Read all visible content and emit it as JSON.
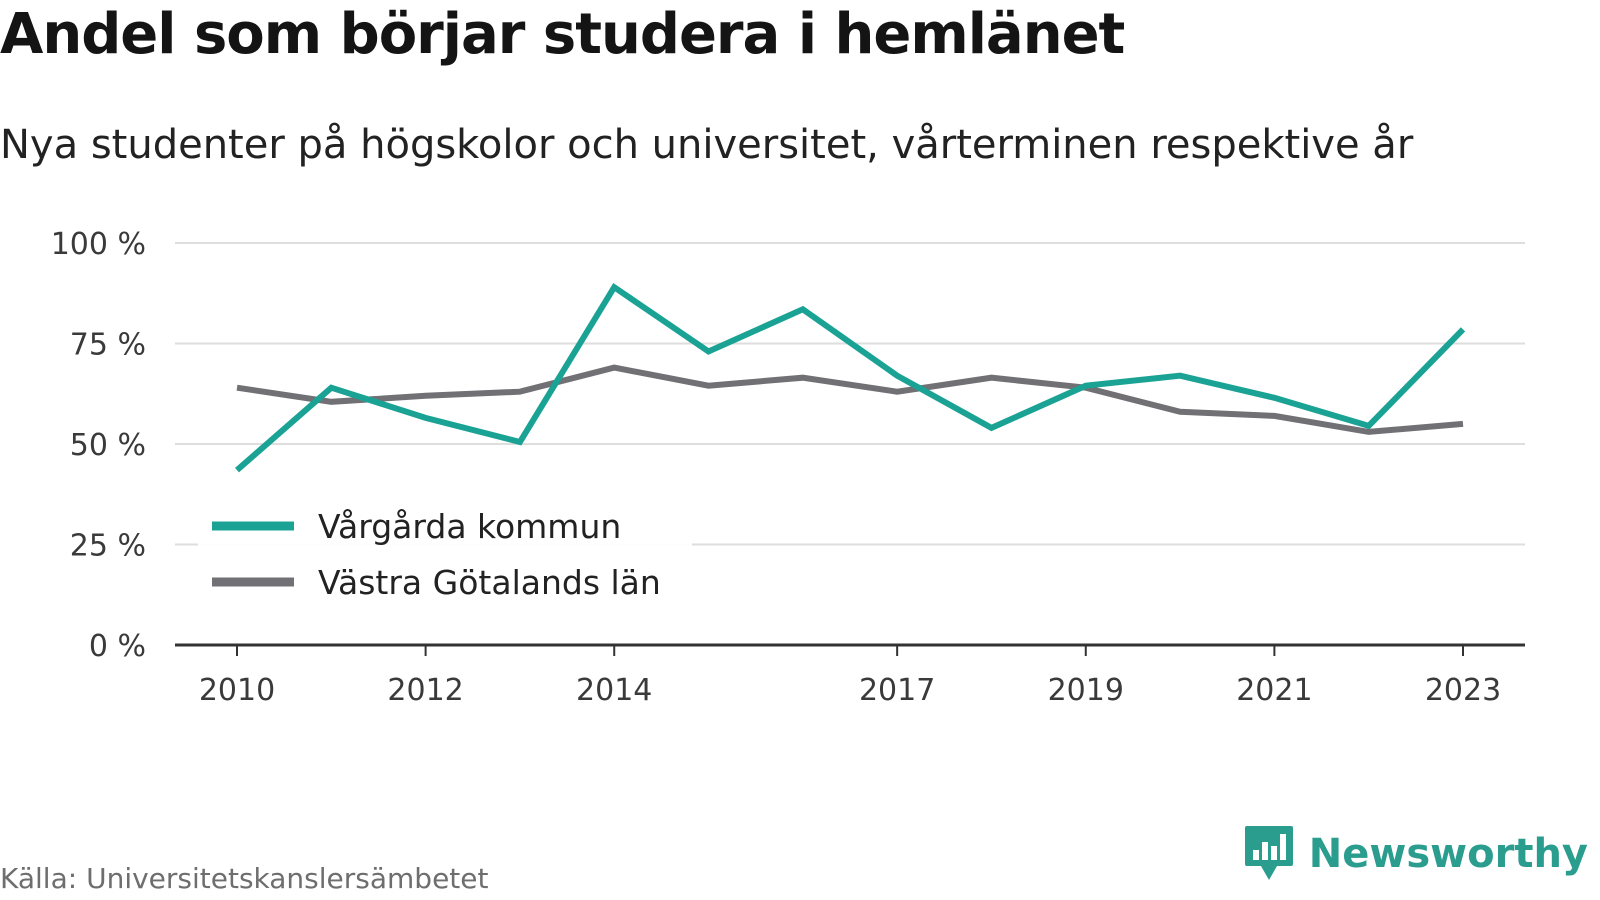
{
  "header": {
    "title": "Andel som börjar studera i hemlänet",
    "subtitle": "Nya studenter på högskolor och universitet, vårterminen respektive år"
  },
  "footer": {
    "source": "Källa: Universitetskanslersämbetet",
    "brand": "Newsworthy"
  },
  "colors": {
    "primary": "#1aa394",
    "secondary": "#707075",
    "grid": "#dedede",
    "axis": "#333333",
    "brand": "#2a9d8f"
  },
  "icons": {
    "brand_logo": "bar-chart-pin-icon"
  },
  "chart_data": {
    "type": "line",
    "title": "Andel som börjar studera i hemlänet",
    "subtitle": "Nya studenter på högskolor och universitet, vårterminen respektive år",
    "xlabel": "",
    "ylabel": "",
    "x": [
      2010,
      2011,
      2012,
      2013,
      2014,
      2015,
      2016,
      2017,
      2018,
      2019,
      2020,
      2021,
      2022,
      2023
    ],
    "xticks": [
      "2010",
      "2012",
      "2014",
      "2017",
      "2019",
      "2021",
      "2023"
    ],
    "yticks": [
      "0 %",
      "25 %",
      "50 %",
      "75 %",
      "100 %"
    ],
    "ylim": [
      0,
      100
    ],
    "grid": true,
    "legend_position": "lower-left",
    "series": [
      {
        "name": "Vårgårda kommun",
        "color": "#1aa394",
        "values": [
          43.5,
          64,
          56.5,
          50.5,
          89,
          73,
          83.5,
          67,
          54,
          64.5,
          67,
          61.5,
          54.5,
          78.5
        ]
      },
      {
        "name": "Västra Götalands län",
        "color": "#707075",
        "values": [
          64,
          60.5,
          62,
          63,
          69,
          64.5,
          66.5,
          63,
          66.5,
          64,
          58,
          57,
          53,
          55
        ]
      }
    ]
  }
}
